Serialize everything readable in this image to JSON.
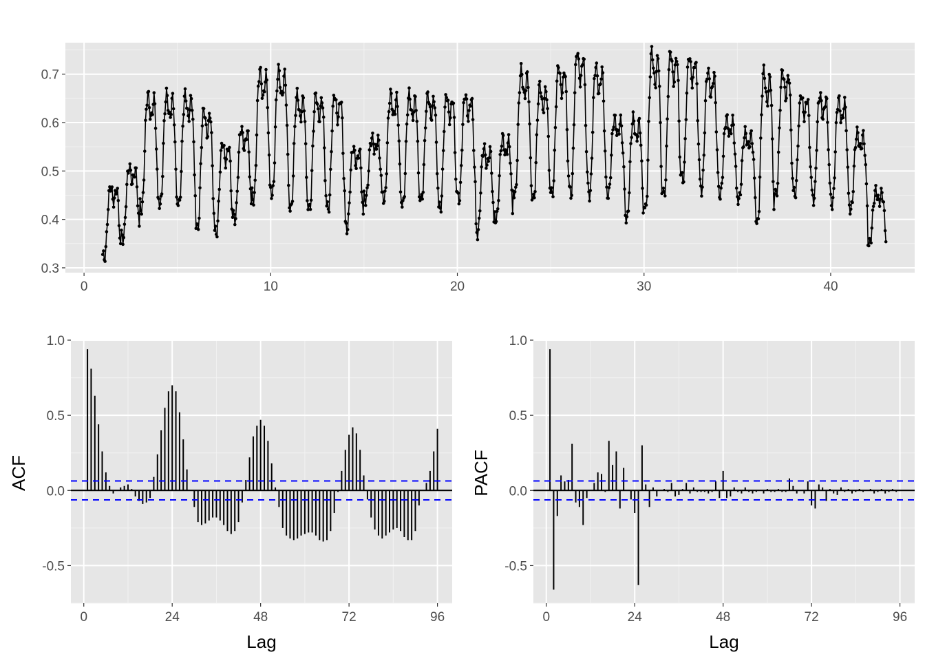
{
  "colors": {
    "panel": "#e6e6e6",
    "grid_major": "#ffffff",
    "grid_minor": "#f2f2f2",
    "series": "#000000",
    "ci": "#0000ff"
  },
  "chart_data": [
    {
      "type": "line",
      "title": "",
      "xlabel": "",
      "ylabel": "",
      "xlim": [
        -1,
        44.5
      ],
      "ylim": [
        0.29,
        0.765
      ],
      "x_ticks": [
        0,
        10,
        20,
        30,
        40
      ],
      "y_ticks": [
        0.3,
        0.4,
        0.5,
        0.6,
        0.7
      ],
      "markers": true,
      "grid": true,
      "x_start": 1.0,
      "x_step": 0.0416667,
      "seasonal_envelope": {
        "note_period_points": 24,
        "day_min": [
          0.32,
          0.36,
          0.42,
          0.43,
          0.43,
          0.38,
          0.37,
          0.4,
          0.44,
          0.45,
          0.42,
          0.42,
          0.42,
          0.38,
          0.44,
          0.44,
          0.43,
          0.44,
          0.42,
          0.44,
          0.37,
          0.4,
          0.45,
          0.44,
          0.45,
          0.45,
          0.45,
          0.45,
          0.4,
          0.42,
          0.45,
          0.48,
          0.46,
          0.45,
          0.44,
          0.39,
          0.45,
          0.45,
          0.44,
          0.43,
          0.42,
          0.35
        ],
        "day_max": [
          0.47,
          0.51,
          0.66,
          0.66,
          0.66,
          0.63,
          0.56,
          0.59,
          0.71,
          0.71,
          0.66,
          0.66,
          0.66,
          0.55,
          0.57,
          0.66,
          0.66,
          0.66,
          0.66,
          0.66,
          0.55,
          0.57,
          0.71,
          0.68,
          0.72,
          0.75,
          0.72,
          0.61,
          0.61,
          0.75,
          0.75,
          0.74,
          0.71,
          0.61,
          0.58,
          0.71,
          0.71,
          0.66,
          0.66,
          0.65,
          0.58,
          0.46
        ]
      }
    },
    {
      "type": "bar",
      "title": "",
      "xlabel": "Lag",
      "ylabel": "ACF",
      "xlim": [
        -3.5,
        100
      ],
      "ylim": [
        -0.75,
        1.0
      ],
      "x_ticks": [
        0,
        24,
        48,
        72,
        96
      ],
      "y_ticks": [
        -0.5,
        0.0,
        0.5,
        1.0
      ],
      "ci": 0.063,
      "lags": [
        1,
        2,
        3,
        4,
        5,
        6,
        7,
        8,
        9,
        10,
        11,
        12,
        13,
        14,
        15,
        16,
        17,
        18,
        19,
        20,
        21,
        22,
        23,
        24,
        25,
        26,
        27,
        28,
        29,
        30,
        31,
        32,
        33,
        34,
        35,
        36,
        37,
        38,
        39,
        40,
        41,
        42,
        43,
        44,
        45,
        46,
        47,
        48,
        49,
        50,
        51,
        52,
        53,
        54,
        55,
        56,
        57,
        58,
        59,
        60,
        61,
        62,
        63,
        64,
        65,
        66,
        67,
        68,
        69,
        70,
        71,
        72,
        73,
        74,
        75,
        76,
        77,
        78,
        79,
        80,
        81,
        82,
        83,
        84,
        85,
        86,
        87,
        88,
        89,
        90,
        91,
        92,
        93,
        94,
        95,
        96
      ],
      "values": [
        0.94,
        0.81,
        0.63,
        0.44,
        0.26,
        0.12,
        0.03,
        -0.02,
        0.0,
        0.02,
        0.03,
        0.04,
        0.01,
        -0.04,
        -0.07,
        -0.09,
        -0.08,
        -0.05,
        0.09,
        0.24,
        0.4,
        0.55,
        0.66,
        0.7,
        0.66,
        0.52,
        0.34,
        0.14,
        0.0,
        -0.11,
        -0.21,
        -0.23,
        -0.22,
        -0.2,
        -0.18,
        -0.18,
        -0.2,
        -0.23,
        -0.27,
        -0.29,
        -0.27,
        -0.21,
        -0.08,
        0.07,
        0.22,
        0.36,
        0.43,
        0.47,
        0.43,
        0.33,
        0.18,
        0.02,
        -0.11,
        -0.25,
        -0.3,
        -0.32,
        -0.33,
        -0.32,
        -0.3,
        -0.29,
        -0.28,
        -0.28,
        -0.3,
        -0.33,
        -0.34,
        -0.33,
        -0.27,
        -0.15,
        -0.01,
        0.13,
        0.27,
        0.37,
        0.42,
        0.38,
        0.27,
        0.1,
        -0.06,
        -0.18,
        -0.26,
        -0.3,
        -0.32,
        -0.3,
        -0.28,
        -0.26,
        -0.25,
        -0.27,
        -0.31,
        -0.33,
        -0.33,
        -0.27,
        -0.1,
        0.0,
        0.05,
        0.13,
        0.26,
        0.41
      ]
    },
    {
      "type": "bar",
      "title": "",
      "xlabel": "Lag",
      "ylabel": "PACF",
      "xlim": [
        -3.5,
        100
      ],
      "ylim": [
        -0.75,
        1.0
      ],
      "x_ticks": [
        0,
        24,
        48,
        72,
        96
      ],
      "y_ticks": [
        -0.5,
        0.0,
        0.5,
        1.0
      ],
      "ci": 0.063,
      "lags": [
        1,
        2,
        3,
        4,
        5,
        6,
        7,
        8,
        9,
        10,
        11,
        12,
        13,
        14,
        15,
        16,
        17,
        18,
        19,
        20,
        21,
        22,
        23,
        24,
        25,
        26,
        27,
        28,
        29,
        30,
        31,
        32,
        33,
        34,
        35,
        36,
        37,
        38,
        39,
        40,
        41,
        42,
        43,
        44,
        45,
        46,
        47,
        48,
        49,
        50,
        51,
        52,
        53,
        54,
        55,
        56,
        57,
        58,
        59,
        60,
        61,
        62,
        63,
        64,
        65,
        66,
        67,
        68,
        69,
        70,
        71,
        72,
        73,
        74,
        75,
        76,
        77,
        78,
        79,
        80,
        81,
        82,
        83,
        84,
        85,
        86,
        87,
        88,
        89,
        90,
        91,
        92,
        93,
        94,
        95,
        96
      ],
      "values": [
        0.94,
        -0.66,
        -0.17,
        0.1,
        0.06,
        0.07,
        0.31,
        -0.08,
        -0.11,
        -0.23,
        -0.05,
        0.0,
        0.05,
        0.12,
        0.11,
        -0.01,
        0.33,
        0.17,
        0.26,
        -0.12,
        0.15,
        0.0,
        -0.06,
        -0.15,
        -0.63,
        0.3,
        0.04,
        -0.11,
        0.02,
        -0.04,
        0.0,
        0.01,
        -0.01,
        0.05,
        -0.04,
        -0.03,
        0.01,
        0.05,
        -0.02,
        0.02,
        -0.01,
        -0.01,
        -0.01,
        -0.02,
        -0.01,
        0.06,
        -0.05,
        0.13,
        -0.05,
        -0.04,
        0.02,
        -0.01,
        -0.02,
        0.02,
        -0.01,
        -0.02,
        -0.01,
        0.0,
        -0.02,
        0.01,
        -0.01,
        -0.01,
        0.01,
        -0.01,
        -0.01,
        0.08,
        0.03,
        -0.02,
        0.0,
        -0.02,
        0.06,
        -0.1,
        -0.12,
        0.04,
        0.02,
        -0.07,
        0.01,
        -0.02,
        -0.03,
        0.02,
        -0.01,
        0.01,
        -0.02,
        -0.01,
        0.01,
        -0.01,
        0.0,
        0.01,
        -0.02,
        -0.01,
        0.01,
        -0.02,
        -0.01,
        0.01,
        -0.01,
        0.0
      ]
    }
  ]
}
